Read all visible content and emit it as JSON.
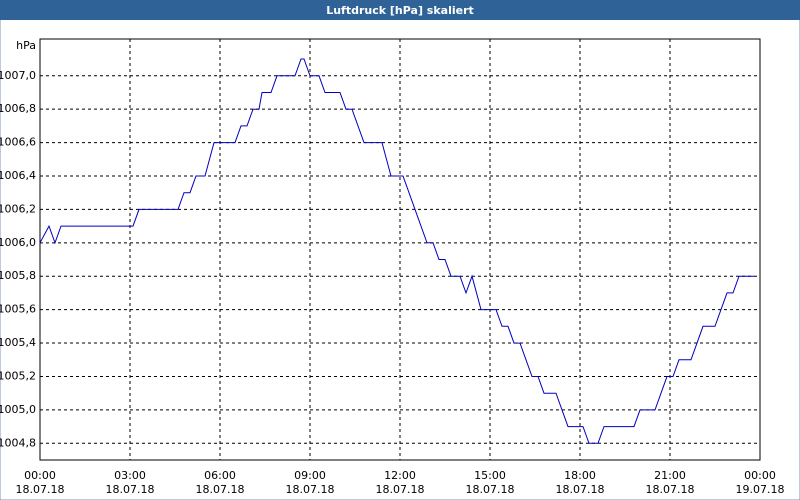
{
  "chart_data": {
    "type": "line",
    "title": "Luftdruck [hPa] skaliert",
    "y_label": "hPa",
    "xlim": [
      0,
      24
    ],
    "ylim": [
      1004.7,
      1007.22
    ],
    "xticks": [
      {
        "value": 0,
        "label": "00:00\n18.07.18"
      },
      {
        "value": 3,
        "label": "03:00\n18.07.18"
      },
      {
        "value": 6,
        "label": "06:00\n18.07.18"
      },
      {
        "value": 9,
        "label": "09:00\n18.07.18"
      },
      {
        "value": 12,
        "label": "12:00\n18.07.18"
      },
      {
        "value": 15,
        "label": "15:00\n18.07.18"
      },
      {
        "value": 18,
        "label": "18:00\n18.07.18"
      },
      {
        "value": 21,
        "label": "21:00\n18.07.18"
      },
      {
        "value": 24,
        "label": "00:00\n19.07.18"
      }
    ],
    "yticks": [
      {
        "value": 1004.8,
        "label": "1004,8"
      },
      {
        "value": 1005.0,
        "label": "1005,0"
      },
      {
        "value": 1005.2,
        "label": "1005,2"
      },
      {
        "value": 1005.4,
        "label": "1005,4"
      },
      {
        "value": 1005.6,
        "label": "1005,6"
      },
      {
        "value": 1005.8,
        "label": "1005,8"
      },
      {
        "value": 1006.0,
        "label": "1006,0"
      },
      {
        "value": 1006.2,
        "label": "1006,2"
      },
      {
        "value": 1006.4,
        "label": "1006,4"
      },
      {
        "value": 1006.6,
        "label": "1006,6"
      },
      {
        "value": 1006.8,
        "label": "1006,8"
      },
      {
        "value": 1007.0,
        "label": "1007,0"
      }
    ],
    "grid": true,
    "series": [
      {
        "color": "#0000c0",
        "x": [
          0,
          0.3,
          0.5,
          0.7,
          3.1,
          3.3,
          4.6,
          4.8,
          5.0,
          5.2,
          5.5,
          5.8,
          6.5,
          6.7,
          6.9,
          7.1,
          7.3,
          7.4,
          7.7,
          7.9,
          8.5,
          8.7,
          8.8,
          9.0,
          9.3,
          9.5,
          10.0,
          10.2,
          10.4,
          10.6,
          10.8,
          11.4,
          11.7,
          12.1,
          12.3,
          12.5,
          12.7,
          12.9,
          13.1,
          13.3,
          13.5,
          13.7,
          14.0,
          14.2,
          14.4,
          14.7,
          15.2,
          15.4,
          15.6,
          15.8,
          16.0,
          16.2,
          16.4,
          16.6,
          16.8,
          17.2,
          17.4,
          17.6,
          18.1,
          18.3,
          18.6,
          18.8,
          19.8,
          20.0,
          20.5,
          20.7,
          20.9,
          21.1,
          21.3,
          21.7,
          21.9,
          22.1,
          22.5,
          22.7,
          22.9,
          23.1,
          23.3,
          23.8
        ],
        "values": [
          1006.0,
          1006.1,
          1006.0,
          1006.1,
          1006.1,
          1006.2,
          1006.2,
          1006.3,
          1006.3,
          1006.4,
          1006.4,
          1006.6,
          1006.6,
          1006.7,
          1006.7,
          1006.8,
          1006.8,
          1006.9,
          1006.9,
          1007.0,
          1007.0,
          1007.1,
          1007.1,
          1007.0,
          1007.0,
          1006.9,
          1006.9,
          1006.8,
          1006.8,
          1006.7,
          1006.6,
          1006.6,
          1006.4,
          1006.4,
          1006.3,
          1006.2,
          1006.1,
          1006.0,
          1006.0,
          1005.9,
          1005.9,
          1005.8,
          1005.8,
          1005.7,
          1005.8,
          1005.6,
          1005.6,
          1005.5,
          1005.5,
          1005.4,
          1005.4,
          1005.3,
          1005.2,
          1005.2,
          1005.1,
          1005.1,
          1005.0,
          1004.9,
          1004.9,
          1004.8,
          1004.8,
          1004.9,
          1004.9,
          1005.0,
          1005.0,
          1005.1,
          1005.2,
          1005.2,
          1005.3,
          1005.3,
          1005.4,
          1005.5,
          1005.5,
          1005.6,
          1005.7,
          1005.7,
          1005.8,
          1005.8
        ]
      }
    ]
  }
}
